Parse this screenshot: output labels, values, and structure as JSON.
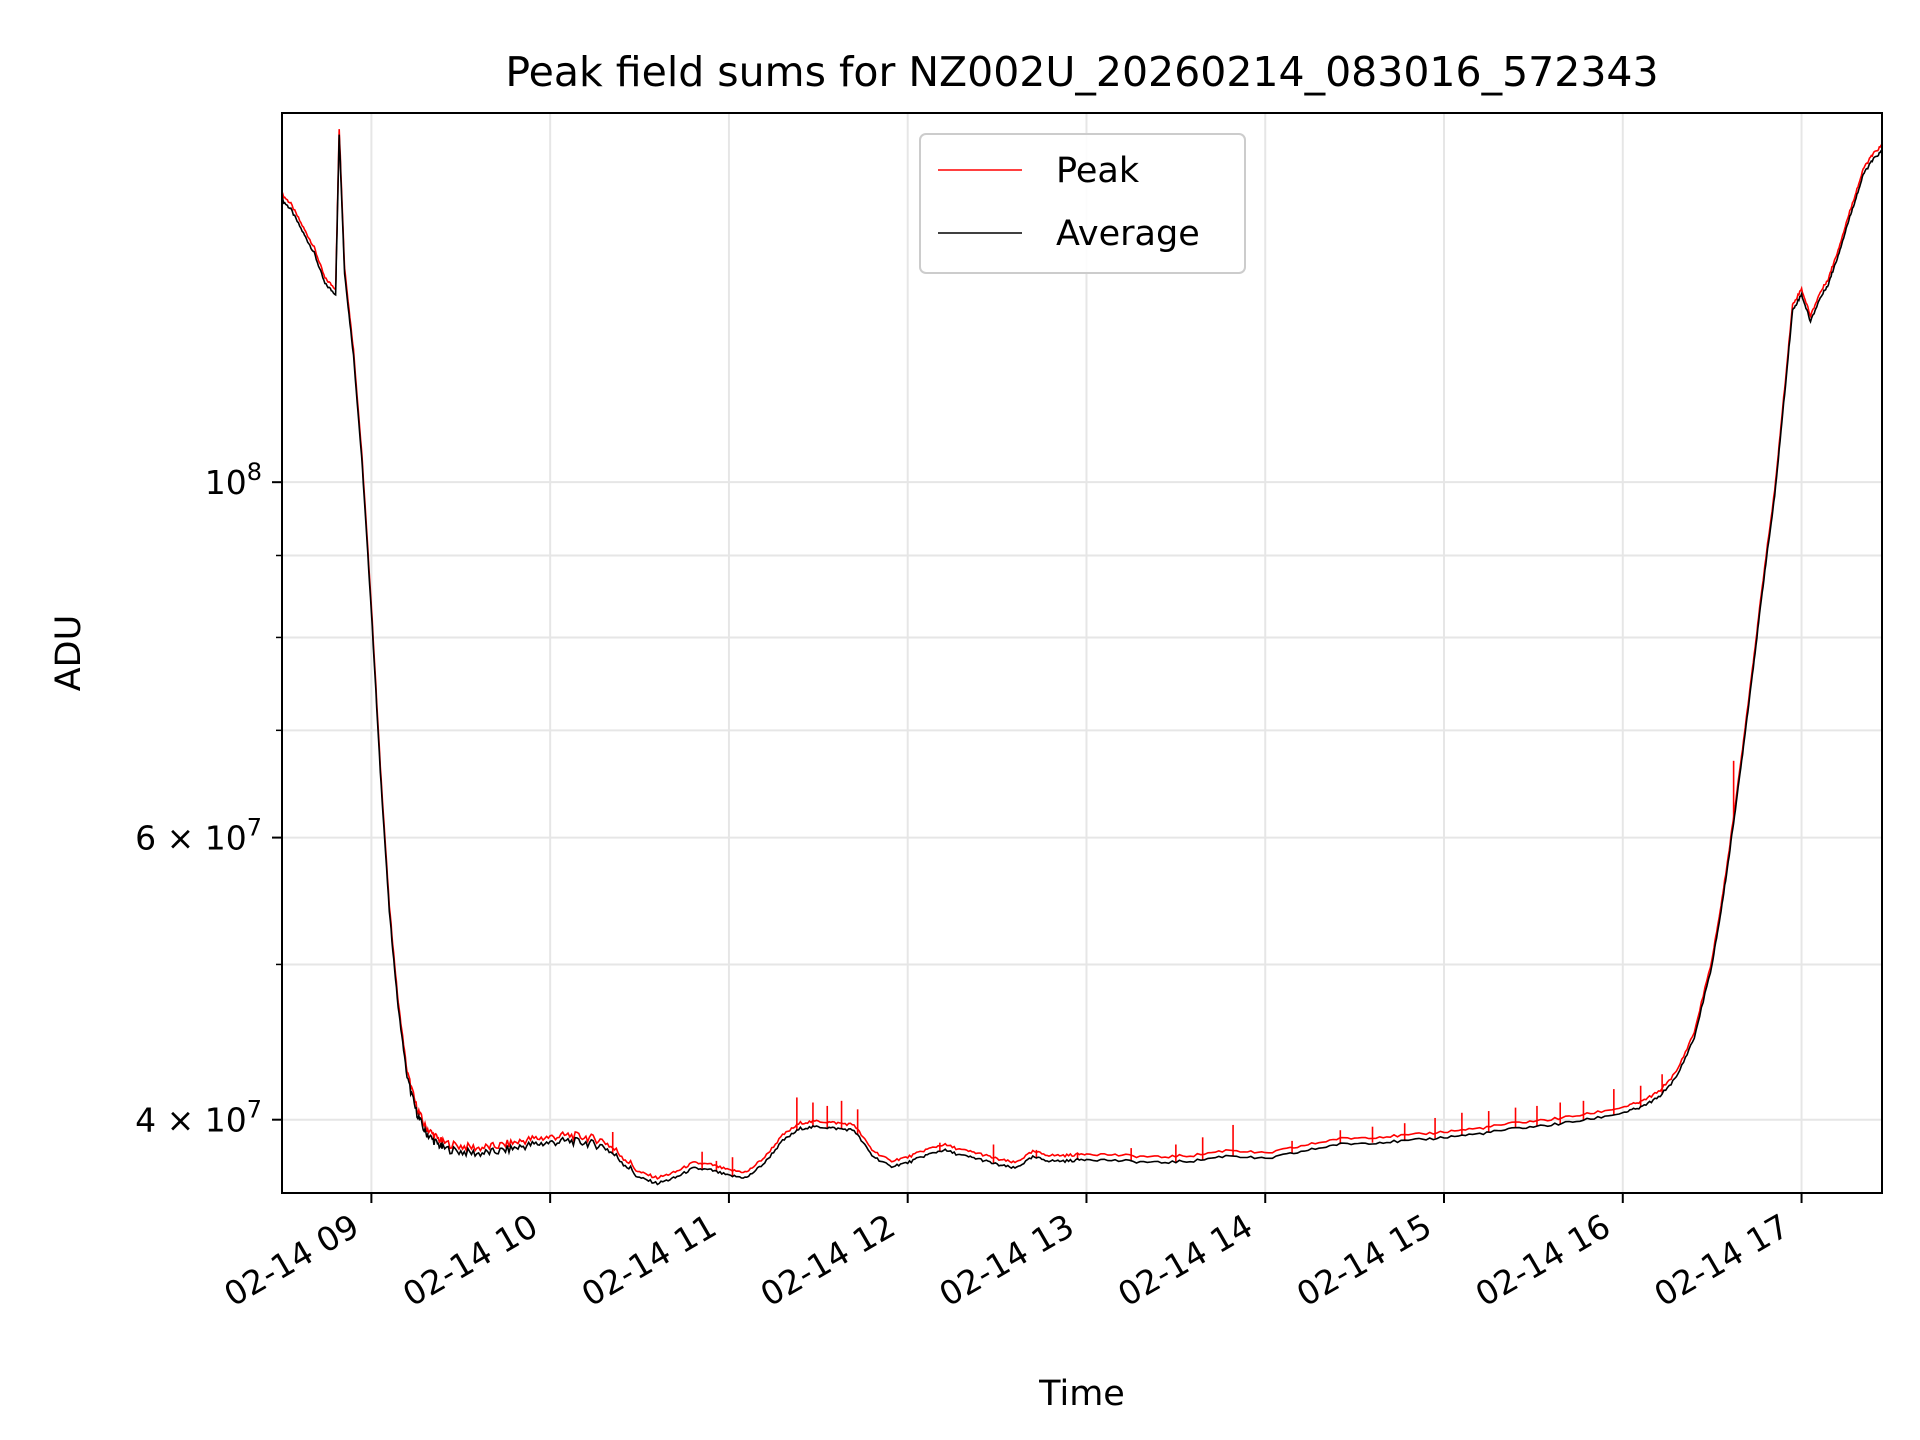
{
  "chart_data": {
    "type": "line",
    "title": "Peak field sums for NZ002U_20260214_083016_572343",
    "xlabel": "Time",
    "ylabel": "ADU",
    "yscale": "log",
    "ylim": [
      36000000,
      170000000
    ],
    "xlim_hours": [
      8.5,
      17.45
    ],
    "x_ticks": [
      {
        "hour": 9,
        "label": "02-14 09"
      },
      {
        "hour": 10,
        "label": "02-14 10"
      },
      {
        "hour": 11,
        "label": "02-14 11"
      },
      {
        "hour": 12,
        "label": "02-14 12"
      },
      {
        "hour": 13,
        "label": "02-14 13"
      },
      {
        "hour": 14,
        "label": "02-14 14"
      },
      {
        "hour": 15,
        "label": "02-14 15"
      },
      {
        "hour": 16,
        "label": "02-14 16"
      },
      {
        "hour": 17,
        "label": "02-14 17"
      }
    ],
    "y_major_ticks": [
      {
        "value": 40000000,
        "label_base": "4 × 10",
        "label_exp": "7"
      },
      {
        "value": 60000000,
        "label_base": "6 × 10",
        "label_exp": "7"
      },
      {
        "value": 100000000,
        "label_base": "10",
        "label_exp": "8"
      }
    ],
    "y_minor_grid": [
      50000000,
      70000000,
      80000000,
      90000000
    ],
    "grid": true,
    "legend": {
      "location": "upper center",
      "entries": [
        {
          "name": "Peak",
          "color": "#ff0000"
        },
        {
          "name": "Average",
          "color": "#000000"
        }
      ]
    },
    "series": [
      {
        "name": "Average",
        "color": "#000000",
        "hours": [
          8.5,
          8.55,
          8.62,
          8.68,
          8.74,
          8.8,
          8.82,
          8.85,
          8.9,
          8.95,
          9.0,
          9.05,
          9.1,
          9.15,
          9.2,
          9.25,
          9.3,
          9.35,
          9.4,
          9.5,
          9.6,
          9.7,
          9.8,
          9.9,
          10.0,
          10.1,
          10.2,
          10.3,
          10.4,
          10.5,
          10.6,
          10.7,
          10.8,
          10.9,
          11.0,
          11.1,
          11.2,
          11.3,
          11.4,
          11.5,
          11.6,
          11.7,
          11.8,
          11.9,
          12.0,
          12.1,
          12.2,
          12.3,
          12.4,
          12.5,
          12.6,
          12.7,
          12.8,
          12.9,
          13.0,
          13.2,
          13.4,
          13.6,
          13.8,
          14.0,
          14.2,
          14.4,
          14.6,
          14.8,
          15.0,
          15.2,
          15.4,
          15.6,
          15.8,
          16.0,
          16.1,
          16.2,
          16.3,
          16.4,
          16.5,
          16.55,
          16.6,
          16.65,
          16.7,
          16.75,
          16.8,
          16.85,
          16.9,
          16.95,
          17.0,
          17.05,
          17.1,
          17.15,
          17.2,
          17.25,
          17.3,
          17.35,
          17.4,
          17.45
        ],
        "values": [
          150000000,
          148000000,
          143000000,
          139000000,
          133000000,
          131000000,
          165000000,
          135000000,
          120000000,
          102000000,
          83000000,
          66000000,
          54000000,
          47000000,
          42500000,
          40500000,
          39300000,
          38800000,
          38400000,
          38200000,
          38100000,
          38200000,
          38400000,
          38600000,
          38700000,
          38800000,
          38700000,
          38500000,
          37700000,
          36800000,
          36500000,
          36800000,
          37300000,
          37200000,
          36900000,
          36800000,
          37600000,
          38800000,
          39500000,
          39600000,
          39500000,
          39400000,
          38000000,
          37400000,
          37600000,
          38000000,
          38300000,
          38000000,
          37800000,
          37500000,
          37300000,
          37900000,
          37700000,
          37700000,
          37800000,
          37700000,
          37600000,
          37700000,
          38000000,
          37800000,
          38200000,
          38600000,
          38700000,
          38800000,
          39000000,
          39200000,
          39500000,
          39700000,
          40000000,
          40400000,
          40700000,
          41300000,
          42500000,
          45000000,
          50000000,
          54000000,
          59000000,
          65000000,
          72000000,
          80000000,
          89000000,
          98000000,
          112000000,
          128000000,
          131000000,
          126000000,
          130000000,
          133000000,
          138000000,
          144000000,
          150000000,
          156000000,
          159000000,
          161000000
        ]
      },
      {
        "name": "Peak",
        "color": "#ff0000",
        "spikes": [
          {
            "hour": 10.35,
            "value": 39300000
          },
          {
            "hour": 10.85,
            "value": 38200000
          },
          {
            "hour": 10.93,
            "value": 37700000
          },
          {
            "hour": 11.02,
            "value": 37900000
          },
          {
            "hour": 11.38,
            "value": 41300000
          },
          {
            "hour": 11.47,
            "value": 41000000
          },
          {
            "hour": 11.55,
            "value": 40800000
          },
          {
            "hour": 11.63,
            "value": 41100000
          },
          {
            "hour": 11.72,
            "value": 40600000
          },
          {
            "hour": 12.18,
            "value": 38700000
          },
          {
            "hour": 12.48,
            "value": 38600000
          },
          {
            "hour": 12.72,
            "value": 38300000
          },
          {
            "hour": 12.95,
            "value": 38100000
          },
          {
            "hour": 13.25,
            "value": 38400000
          },
          {
            "hour": 13.5,
            "value": 38600000
          },
          {
            "hour": 13.65,
            "value": 39000000
          },
          {
            "hour": 13.82,
            "value": 39700000
          },
          {
            "hour": 14.15,
            "value": 38800000
          },
          {
            "hour": 14.42,
            "value": 39400000
          },
          {
            "hour": 14.6,
            "value": 39600000
          },
          {
            "hour": 14.78,
            "value": 39800000
          },
          {
            "hour": 14.95,
            "value": 40100000
          },
          {
            "hour": 15.1,
            "value": 40400000
          },
          {
            "hour": 15.25,
            "value": 40500000
          },
          {
            "hour": 15.4,
            "value": 40700000
          },
          {
            "hour": 15.52,
            "value": 40800000
          },
          {
            "hour": 15.65,
            "value": 41000000
          },
          {
            "hour": 15.78,
            "value": 41100000
          },
          {
            "hour": 15.95,
            "value": 41800000
          },
          {
            "hour": 16.1,
            "value": 42000000
          },
          {
            "hour": 16.22,
            "value": 42700000
          },
          {
            "hour": 16.35,
            "value": 43700000
          },
          {
            "hour": 16.62,
            "value": 67000000
          }
        ],
        "offset_factor": 1.008
      }
    ]
  }
}
